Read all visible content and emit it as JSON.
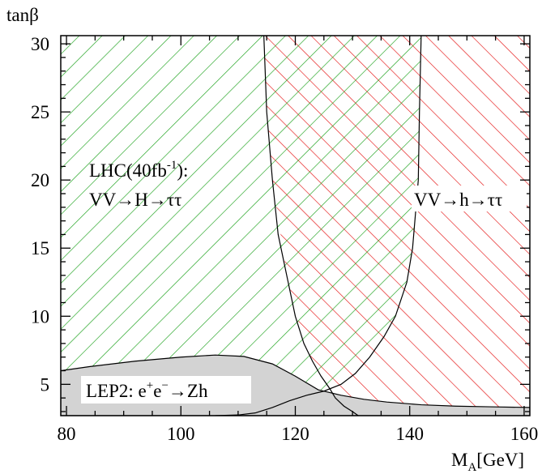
{
  "chart_data": {
    "type": "area",
    "xlabel": {
      "main": "M",
      "sub": "A",
      "rest": "[GeV]"
    },
    "ylabel": "tanβ",
    "xlim": [
      79,
      161
    ],
    "ylim": [
      2.7,
      30.6
    ],
    "xticks": [
      80,
      100,
      120,
      140,
      160
    ],
    "yticks": [
      5,
      10,
      15,
      20,
      25,
      30
    ],
    "grid": false,
    "colors": {
      "H_hatch": "#1aa11a",
      "h_hatch": "#e51414",
      "lep_fill": "#d3d3d3",
      "lines": "#000000"
    },
    "regions": [
      {
        "name": "VV→H→ττ",
        "description_label": "LHC(40fb⁻¹): VV→H→ττ",
        "boundary": [
          [
            79,
            30.6
          ],
          [
            79,
            2.7
          ],
          [
            131,
            2.7
          ],
          [
            127,
            4.0
          ],
          [
            124.5,
            5.6
          ],
          [
            121.5,
            8.0
          ],
          [
            118.5,
            13.0
          ],
          [
            116,
            20.0
          ],
          [
            115,
            25.0
          ],
          [
            114.5,
            30.6
          ]
        ]
      },
      {
        "name": "VV→h→ττ",
        "boundary": [
          [
            114.5,
            30.6
          ],
          [
            115,
            25.0
          ],
          [
            116,
            20.0
          ],
          [
            118.5,
            13.0
          ],
          [
            121.5,
            8.0
          ],
          [
            124.5,
            5.6
          ],
          [
            127,
            4.0
          ],
          [
            131,
            2.7
          ],
          [
            161,
            2.7
          ],
          [
            161,
            30.6
          ]
        ]
      },
      {
        "name": "LEP2 excluded",
        "boundary": [
          [
            79,
            6.0
          ],
          [
            84,
            6.3
          ],
          [
            92,
            6.7
          ],
          [
            100,
            7.0
          ],
          [
            106,
            7.15
          ],
          [
            111,
            7.05
          ],
          [
            116,
            6.5
          ],
          [
            120,
            5.6
          ],
          [
            124,
            4.6
          ],
          [
            128,
            4.2
          ],
          [
            132,
            3.9
          ],
          [
            136,
            3.7
          ],
          [
            142,
            3.5
          ],
          [
            148,
            3.4
          ],
          [
            154,
            3.35
          ],
          [
            161,
            3.3
          ],
          [
            161,
            2.7
          ],
          [
            79,
            2.7
          ]
        ]
      }
    ],
    "curves": [
      {
        "name": "H-ττ left boundary",
        "points": [
          [
            114.5,
            30.6
          ],
          [
            115,
            25.0
          ],
          [
            116,
            20.0
          ],
          [
            117,
            16.0
          ],
          [
            118.5,
            13.0
          ],
          [
            120,
            10.0
          ],
          [
            121.5,
            8.0
          ],
          [
            123,
            6.7
          ],
          [
            124.5,
            5.6
          ],
          [
            126,
            4.7
          ],
          [
            127,
            4.0
          ],
          [
            128.5,
            3.4
          ],
          [
            130,
            3.0
          ],
          [
            131,
            2.7
          ]
        ]
      },
      {
        "name": "h-ττ right boundary",
        "points": [
          [
            142,
            30.6
          ],
          [
            141.7,
            25.0
          ],
          [
            141.5,
            20.0
          ],
          [
            140.5,
            15.0
          ],
          [
            139.5,
            12.5
          ],
          [
            137.5,
            10.0
          ],
          [
            135.5,
            8.5
          ],
          [
            133,
            7.0
          ],
          [
            130.5,
            5.8
          ],
          [
            128,
            5.0
          ],
          [
            125,
            4.5
          ],
          [
            122,
            4.2
          ],
          [
            119,
            3.8
          ],
          [
            116,
            3.3
          ],
          [
            113,
            2.9
          ],
          [
            110,
            2.75
          ],
          [
            106,
            2.7
          ]
        ]
      }
    ],
    "annotations": [
      {
        "id": "lhc_line1",
        "text": "LHC(40fb",
        "sup": "-1",
        "tail": "):"
      },
      {
        "id": "lhc_line2",
        "text": "VV→H→ττ"
      },
      {
        "id": "h_label",
        "text": "VV→h→ττ"
      },
      {
        "id": "lep_label",
        "pre": "LEP2: e",
        "sup1": "+",
        "mid": "e",
        "sup2": "−",
        "post": "→Zh"
      }
    ]
  }
}
